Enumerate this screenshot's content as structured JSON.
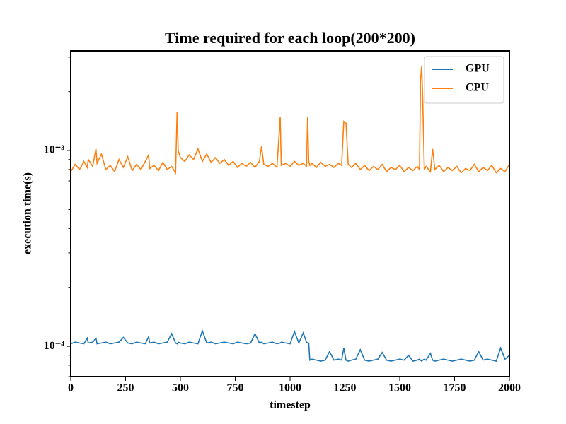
{
  "chart_data": {
    "type": "line",
    "title": "Time required for each loop(200*200)",
    "xlabel": "timestep",
    "ylabel": "execution time(s)",
    "yscale": "log",
    "legend": "upper right",
    "xlim": [
      0,
      2000
    ],
    "xticks": [
      0,
      250,
      500,
      750,
      1000,
      1250,
      1500,
      1750,
      2000
    ],
    "ylim": [
      7e-05,
      0.00323
    ],
    "yticks": [
      {
        "value": 0.0001,
        "label": "10⁻⁴"
      },
      {
        "value": 0.001,
        "label": "10⁻³"
      }
    ],
    "yminorticks": [
      7e-05,
      8e-05,
      9e-05,
      0.0002,
      0.0003,
      0.0004,
      0.0005,
      0.0006,
      0.0007,
      0.0008,
      0.0009,
      0.002,
      0.003
    ],
    "x": [
      0,
      20,
      40,
      60,
      75,
      80,
      100,
      115,
      120,
      140,
      160,
      180,
      200,
      220,
      240,
      260,
      280,
      300,
      320,
      340,
      355,
      360,
      380,
      400,
      420,
      440,
      460,
      478,
      485,
      490,
      500,
      520,
      540,
      560,
      580,
      600,
      620,
      640,
      660,
      680,
      700,
      720,
      740,
      760,
      780,
      800,
      820,
      840,
      860,
      870,
      880,
      900,
      920,
      940,
      955,
      960,
      980,
      1000,
      1020,
      1040,
      1060,
      1075,
      1080,
      1085,
      1090,
      1100,
      1120,
      1140,
      1160,
      1180,
      1200,
      1220,
      1235,
      1245,
      1255,
      1265,
      1280,
      1300,
      1320,
      1340,
      1360,
      1380,
      1400,
      1420,
      1440,
      1460,
      1480,
      1500,
      1520,
      1540,
      1560,
      1580,
      1590,
      1595,
      1600,
      1605,
      1612,
      1620,
      1640,
      1650,
      1660,
      1680,
      1700,
      1720,
      1740,
      1760,
      1780,
      1800,
      1820,
      1840,
      1860,
      1880,
      1900,
      1920,
      1940,
      1960,
      1980,
      2000
    ],
    "series": [
      {
        "name": "GPU",
        "color": "#1f77b4",
        "values": [
          0.000103,
          0.000105,
          0.000104,
          0.000103,
          0.00011,
          0.000104,
          0.000105,
          0.00011,
          0.000103,
          0.000104,
          0.000105,
          0.000103,
          0.000104,
          0.000105,
          0.000111,
          0.000104,
          0.000103,
          0.000105,
          0.000104,
          0.000103,
          0.000112,
          0.000104,
          0.000105,
          0.000103,
          0.000104,
          0.000105,
          0.000116,
          0.000104,
          0.000103,
          0.000105,
          0.000104,
          0.000103,
          0.000105,
          0.000104,
          0.000103,
          0.00012,
          0.000104,
          0.000105,
          0.000103,
          0.000104,
          0.000105,
          0.000104,
          0.000103,
          0.000105,
          0.000104,
          0.000103,
          0.000104,
          0.000116,
          0.000104,
          0.000105,
          0.000103,
          0.000104,
          0.000105,
          0.000103,
          0.000104,
          0.000105,
          0.000104,
          0.000103,
          0.000119,
          0.000104,
          0.000117,
          0.000105,
          0.000104,
          0.000104,
          8.5e-05,
          8.6e-05,
          8.5e-05,
          8.4e-05,
          8.5e-05,
          9.4e-05,
          8.5e-05,
          8.6e-05,
          8.5e-05,
          9.8e-05,
          8.5e-05,
          8.4e-05,
          8.5e-05,
          8.6e-05,
          9.6e-05,
          8.5e-05,
          8.4e-05,
          8.5e-05,
          8.6e-05,
          9.3e-05,
          8.5e-05,
          8.4e-05,
          8.5e-05,
          8.6e-05,
          8.5e-05,
          9e-05,
          8.4e-05,
          8.5e-05,
          8.6e-05,
          8.5e-05,
          8.4e-05,
          8.5e-05,
          8.6e-05,
          8.5e-05,
          9.2e-05,
          8.5e-05,
          8.4e-05,
          8.5e-05,
          8.6e-05,
          8.5e-05,
          8.4e-05,
          8.5e-05,
          8.6e-05,
          8.5e-05,
          8.4e-05,
          8.5e-05,
          9.4e-05,
          8.5e-05,
          8.6e-05,
          8.5e-05,
          8.4e-05,
          9.8e-05,
          8.6e-05,
          9e-05
        ]
      },
      {
        "name": "CPU",
        "color": "#ff7f0e",
        "values": [
          0.00078,
          0.00085,
          0.0008,
          0.00088,
          0.00082,
          0.0009,
          0.00083,
          0.00102,
          0.00086,
          0.00096,
          0.0008,
          0.00084,
          0.00078,
          0.0009,
          0.00082,
          0.00093,
          0.00079,
          0.00085,
          0.0008,
          0.00088,
          0.00095,
          0.00081,
          0.00084,
          0.00079,
          0.00087,
          0.0008,
          0.00083,
          0.00077,
          0.00158,
          0.001,
          0.00092,
          0.00088,
          0.00095,
          0.0009,
          0.00102,
          0.00088,
          0.00096,
          0.00087,
          0.00092,
          0.00086,
          0.0009,
          0.00084,
          0.00088,
          0.00082,
          0.00086,
          0.00083,
          0.00087,
          0.00082,
          0.00088,
          0.00105,
          0.00085,
          0.00083,
          0.00086,
          0.00082,
          0.00148,
          0.00084,
          0.00086,
          0.00083,
          0.00088,
          0.00084,
          0.00086,
          0.00083,
          0.00149,
          0.00088,
          0.00084,
          0.00086,
          0.00082,
          0.00087,
          0.00083,
          0.00085,
          0.00082,
          0.00086,
          0.00084,
          0.00141,
          0.00138,
          0.00085,
          0.00082,
          0.00086,
          0.0008,
          0.00084,
          0.00079,
          0.00083,
          0.0008,
          0.00085,
          0.00078,
          0.00082,
          0.0008,
          0.00084,
          0.00078,
          0.00082,
          0.00079,
          0.00083,
          0.0008,
          0.0023,
          0.0027,
          0.0018,
          0.0008,
          0.00083,
          0.00078,
          0.00102,
          0.0008,
          0.00084,
          0.00078,
          0.00082,
          0.00079,
          0.00083,
          0.00077,
          0.00081,
          0.00079,
          0.00085,
          0.00078,
          0.00082,
          0.00079,
          0.00084,
          0.00077,
          0.00081,
          0.00078,
          0.00085
        ]
      }
    ]
  }
}
